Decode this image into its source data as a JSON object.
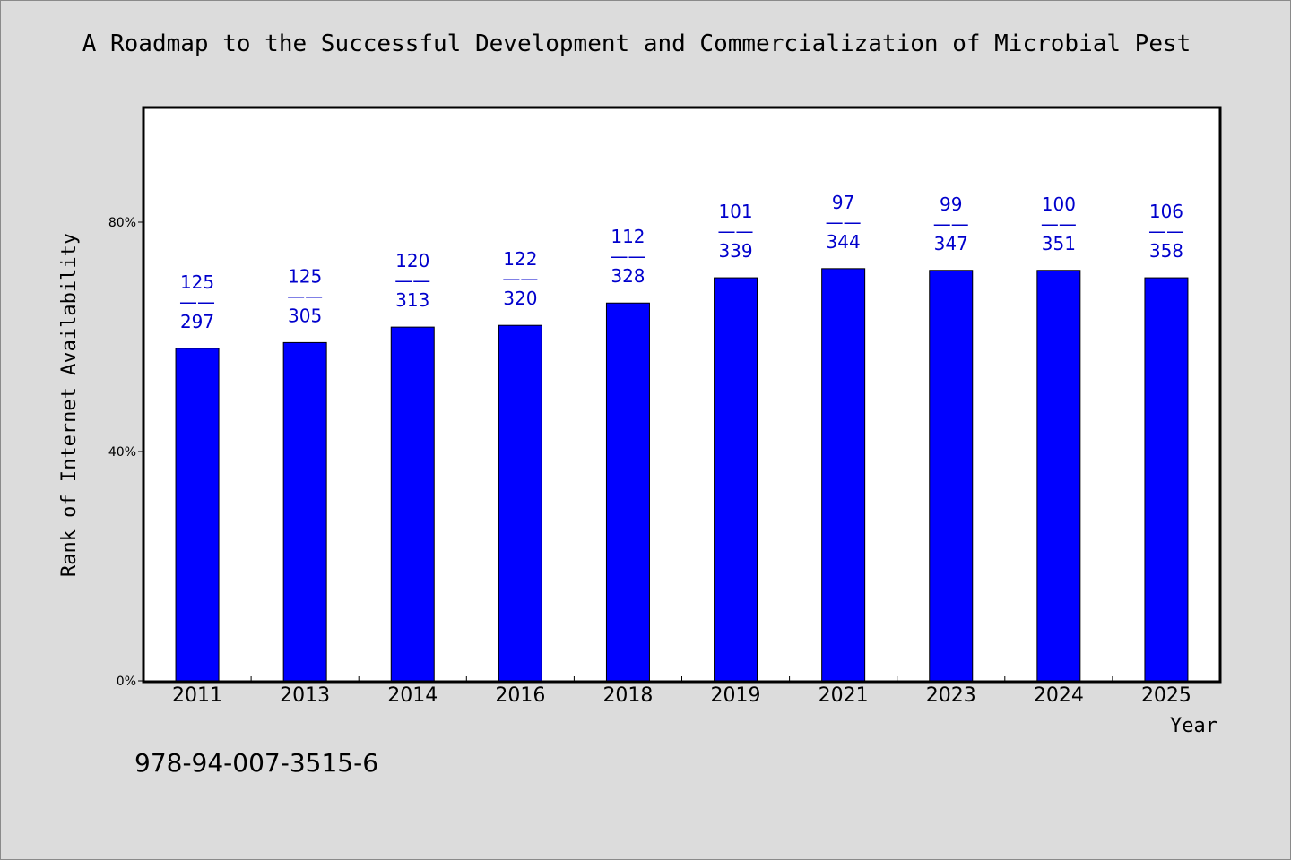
{
  "chart_data": {
    "type": "bar",
    "title": "A Roadmap to the Successful Development and Commercialization of Microbial Pest",
    "xlabel": "Year",
    "ylabel": "Rank of Internet Availability",
    "categories": [
      "2011",
      "2013",
      "2014",
      "2016",
      "2018",
      "2019",
      "2021",
      "2023",
      "2024",
      "2025"
    ],
    "values": [
      58.0,
      59.0,
      61.7,
      62.0,
      65.9,
      70.3,
      71.9,
      71.6,
      71.6,
      70.3
    ],
    "bar_labels_top": [
      "125",
      "125",
      "120",
      "122",
      "112",
      "101",
      "97",
      "99",
      "100",
      "106"
    ],
    "bar_labels_bottom": [
      "297",
      "305",
      "313",
      "320",
      "328",
      "339",
      "344",
      "347",
      "351",
      "358"
    ],
    "label_separator": "——",
    "ylim": [
      0,
      100
    ],
    "yticks": [
      0,
      40,
      80
    ],
    "ytick_labels": [
      "0%",
      "40%",
      "80%"
    ],
    "grid": false,
    "bar_color": "#0000ff",
    "label_color": "#0000cc"
  },
  "footer": {
    "isbn": "978-94-007-3515-6"
  }
}
